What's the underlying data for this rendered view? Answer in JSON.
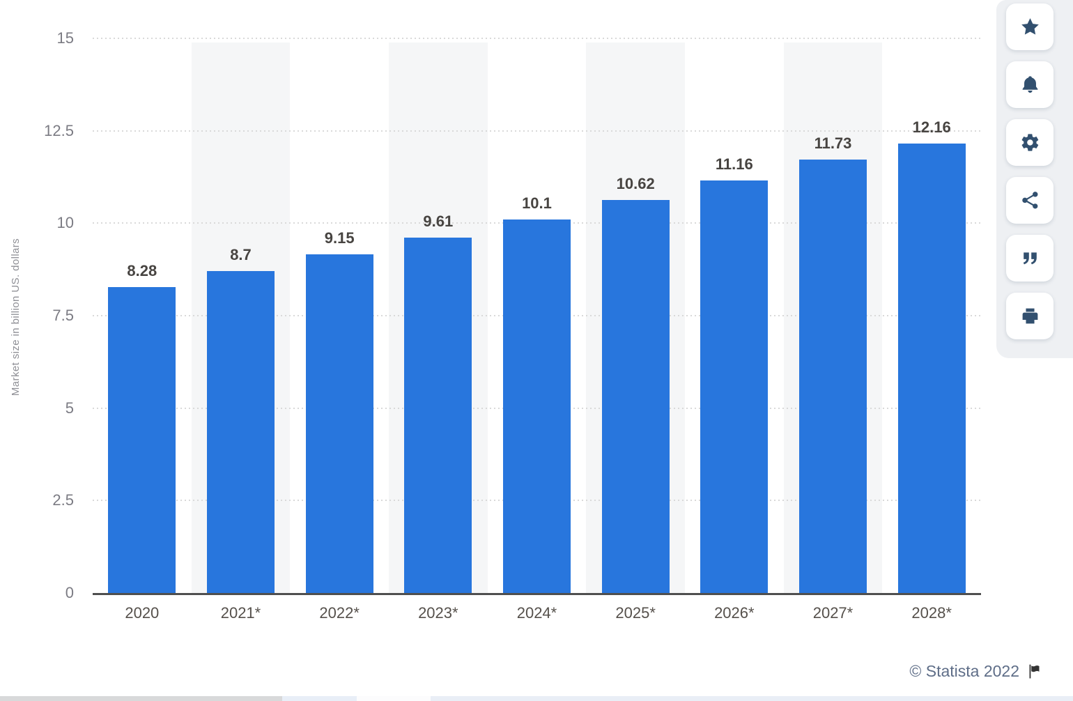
{
  "chart_data": {
    "type": "bar",
    "categories": [
      "2020",
      "2021*",
      "2022*",
      "2023*",
      "2024*",
      "2025*",
      "2026*",
      "2027*",
      "2028*"
    ],
    "values": [
      8.28,
      8.7,
      9.15,
      9.61,
      10.1,
      10.62,
      11.16,
      11.73,
      12.16
    ],
    "value_labels": [
      "8.28",
      "8.7",
      "9.15",
      "9.61",
      "10.1",
      "10.62",
      "11.16",
      "11.73",
      "12.16"
    ],
    "title": "",
    "xlabel": "",
    "ylabel": "Market size in billion US. dollars",
    "ylim": [
      0,
      15
    ],
    "y_ticks": [
      0,
      2.5,
      5,
      7.5,
      10,
      12.5,
      15
    ],
    "y_tick_labels": [
      "0",
      "2.5",
      "5",
      "7.5",
      "10",
      "12.5",
      "15"
    ],
    "grid": "dotted-horizontal",
    "legend": "none",
    "shaded_columns": [
      1,
      3,
      5,
      7
    ],
    "bar_color": "#2876dd"
  },
  "toolbar": {
    "buttons": [
      {
        "name": "favorite-button",
        "icon": "star-icon"
      },
      {
        "name": "notifications-button",
        "icon": "bell-icon"
      },
      {
        "name": "settings-button",
        "icon": "gear-icon"
      },
      {
        "name": "share-button",
        "icon": "share-icon"
      },
      {
        "name": "cite-button",
        "icon": "quote-icon"
      },
      {
        "name": "print-button",
        "icon": "printer-icon"
      }
    ]
  },
  "footer": {
    "attribution": "© Statista 2022",
    "flag_icon": "flag-icon"
  },
  "colors": {
    "bar": "#2876dd",
    "band": "#f5f6f7",
    "gridline": "#d9d9d9",
    "axis_line": "#4f4f4f",
    "value_label": "#474441",
    "x_tick": "#55504b",
    "y_tick": "#7b7b83",
    "y_title": "#8f9096",
    "attribution_text": "#5f6e88",
    "toolbar_icon": "#32506f",
    "toolbar_bg": "#eef0f3"
  }
}
